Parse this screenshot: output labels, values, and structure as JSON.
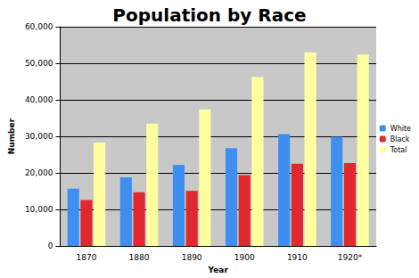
{
  "chart_data": {
    "type": "bar",
    "title": "Population by Race",
    "x_label": "Year",
    "y_label": "Number",
    "categories": [
      "1870",
      "1880",
      "1890",
      "1900",
      "1910",
      "1920*"
    ],
    "series": [
      {
        "name": "White",
        "color": "#3f8ff0",
        "values": [
          15700,
          18800,
          22200,
          26800,
          30600,
          29900
        ]
      },
      {
        "name": "Black",
        "color": "#e0282e",
        "values": [
          12600,
          14700,
          15100,
          19400,
          22500,
          22700
        ]
      },
      {
        "name": "Total",
        "color": "#ffffa0",
        "values": [
          28300,
          33500,
          37400,
          46200,
          53000,
          52400
        ]
      }
    ],
    "ylim": [
      0,
      60000
    ],
    "yticks": [
      0,
      {
        "value": 10000,
        "label": "10,000"
      },
      {
        "value": 20000,
        "label": "20,000"
      },
      {
        "value": 30000,
        "label": "30,000"
      },
      {
        "value": 40000,
        "label": "40,000"
      },
      {
        "value": 50000,
        "label": "50,000"
      },
      {
        "value": 60000,
        "label": "60,000"
      }
    ],
    "grid": true,
    "legend": "right"
  }
}
